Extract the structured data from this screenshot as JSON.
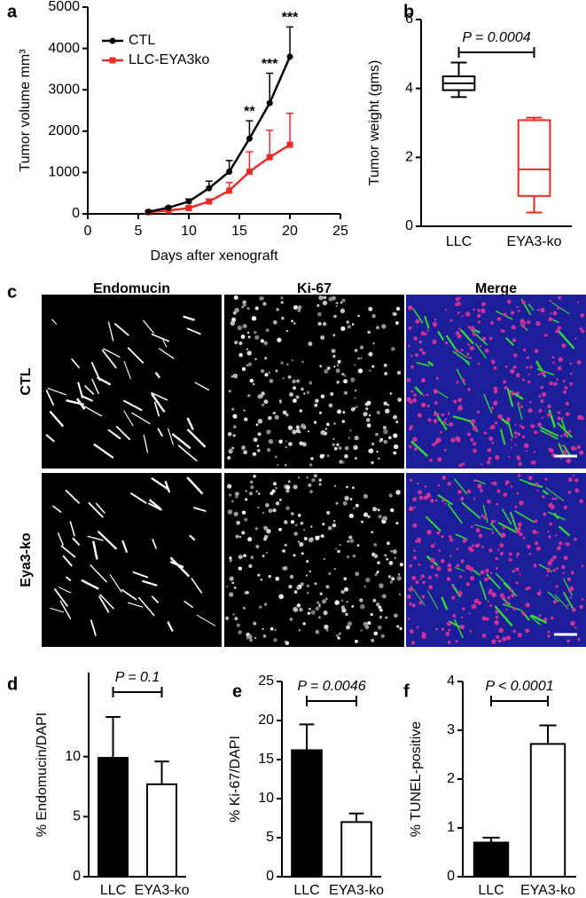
{
  "chart_data": [
    {
      "type": "line",
      "panel_label": "a",
      "xlabel": "Days after xenograft",
      "ylabel": "Tumor volume mm³",
      "x": [
        6,
        8,
        10,
        12,
        14,
        16,
        18,
        20
      ],
      "series": [
        {
          "name": "CTL",
          "color": "#000000",
          "marker": "circle",
          "values": [
            50,
            150,
            300,
            620,
            1020,
            1820,
            2680,
            3800
          ],
          "errors": [
            20,
            30,
            60,
            170,
            270,
            430,
            720,
            720
          ]
        },
        {
          "name": "LLC-EYA3ko",
          "color": "#ee2a24",
          "marker": "square",
          "values": [
            40,
            80,
            140,
            300,
            560,
            1020,
            1370,
            1670
          ],
          "errors": [
            15,
            25,
            40,
            60,
            200,
            480,
            650,
            760
          ]
        }
      ],
      "annotations": [
        {
          "text": "**",
          "x": 16
        },
        {
          "text": "***",
          "x": 18
        },
        {
          "text": "***",
          "x": 20
        }
      ],
      "xlim": [
        0,
        25
      ],
      "xticks": [
        0,
        5,
        10,
        15,
        20,
        25
      ],
      "ylim": [
        0,
        5000
      ],
      "yticks": [
        0,
        1000,
        2000,
        3000,
        4000,
        5000
      ],
      "legend": "upper left"
    },
    {
      "type": "box",
      "panel_label": "b",
      "ylabel": "Tumor weight (gms)",
      "annotation": "P = 0.0004",
      "categories": [
        "LLC",
        "EYA3-ko"
      ],
      "colors": [
        "#000000",
        "#ee2a24"
      ],
      "boxes": [
        {
          "min": 3.75,
          "q1": 3.95,
          "median": 4.15,
          "q3": 4.35,
          "max": 4.75
        },
        {
          "min": 0.4,
          "q1": 0.88,
          "median": 1.65,
          "q3": 3.08,
          "max": 3.15
        }
      ],
      "ylim": [
        0,
        6
      ],
      "yticks": [
        0,
        2,
        4,
        6
      ]
    },
    {
      "type": "bar",
      "panel_label": "d",
      "ylabel": "%  Endomucin/DAPI",
      "annotation": "P = 0.1",
      "categories": [
        "LLC",
        "EYA3-ko"
      ],
      "colors": [
        "#000000",
        "#ffffff"
      ],
      "values": [
        9.9,
        7.7
      ],
      "errors": [
        3.4,
        1.9
      ],
      "ylim": [
        0,
        17
      ],
      "yticks": [
        0,
        5,
        10
      ]
    },
    {
      "type": "bar",
      "panel_label": "e",
      "ylabel": "% Ki-67/DAPI",
      "annotation": "P = 0.0046",
      "categories": [
        "LLC",
        "EYA3-ko"
      ],
      "colors": [
        "#000000",
        "#ffffff"
      ],
      "values": [
        16.2,
        7.0
      ],
      "errors": [
        3.3,
        1.1
      ],
      "ylim": [
        0,
        25
      ],
      "yticks": [
        0,
        5,
        10,
        15,
        20,
        25
      ]
    },
    {
      "type": "bar",
      "panel_label": "f",
      "ylabel": "% TUNEL-positive",
      "annotation": "P < 0.0001",
      "categories": [
        "LLC",
        "EYA3-ko"
      ],
      "colors": [
        "#000000",
        "#ffffff"
      ],
      "values": [
        0.7,
        2.72
      ],
      "errors": [
        0.1,
        0.38
      ],
      "ylim": [
        0,
        4
      ],
      "yticks": [
        0,
        1,
        2,
        3,
        4
      ]
    }
  ],
  "image_panel": {
    "panel_label": "c",
    "columns": [
      "Endomucin",
      "Ki-67",
      "Merge"
    ],
    "rows": [
      "CTL",
      "Eya3-ko"
    ]
  }
}
